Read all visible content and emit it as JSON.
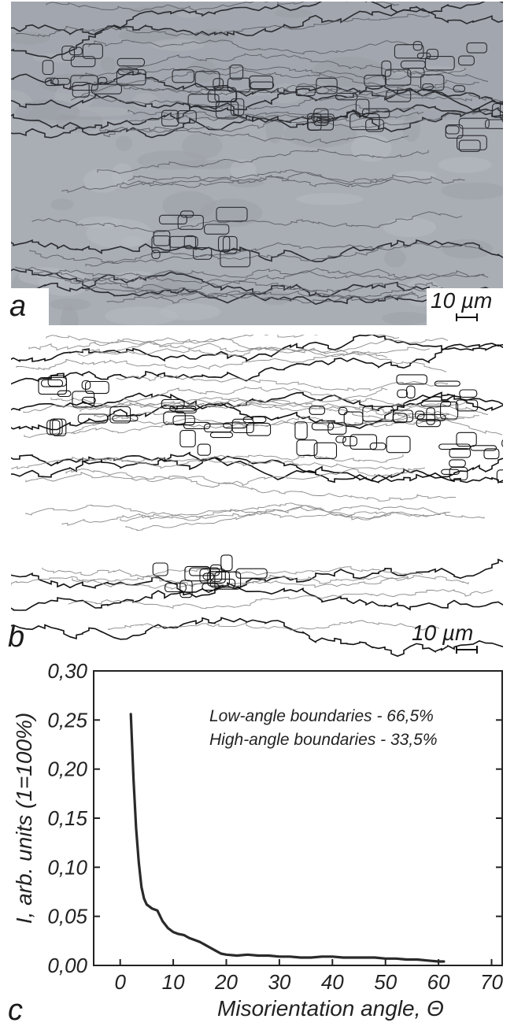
{
  "figure": {
    "panel_a": {
      "letter": "a",
      "scale_label": "10 µm"
    },
    "panel_b": {
      "letter": "b",
      "scale_label": "10 µm"
    },
    "panel_c": {
      "letter": "c"
    }
  },
  "chart_data": {
    "type": "line",
    "title": "",
    "xlabel": "Misorientation angle, Θ",
    "ylabel": "I, arb. units (1=100%)",
    "xlim": [
      -5,
      72
    ],
    "ylim": [
      0,
      0.3
    ],
    "x_ticks": [
      0,
      10,
      20,
      30,
      40,
      50,
      60,
      70
    ],
    "y_ticks": [
      0.0,
      0.05,
      0.1,
      0.15,
      0.2,
      0.25,
      0.3
    ],
    "x_tick_labels": [
      "0",
      "10",
      "20",
      "30",
      "40",
      "50",
      "60",
      "70"
    ],
    "y_tick_labels": [
      "0,00",
      "0,05",
      "0,10",
      "0,15",
      "0,20",
      "0,25",
      "0,30"
    ],
    "grid": false,
    "annotations": [
      "Low-angle boundaries - 66,5%",
      "High-angle boundaries - 33,5%"
    ],
    "series": [
      {
        "x": [
          2,
          2.5,
          3,
          3.5,
          4,
          4.5,
          5,
          5.5,
          6,
          7,
          8,
          9,
          10,
          11,
          12,
          13,
          14,
          15,
          16,
          17,
          18,
          19,
          20,
          22,
          24,
          26,
          28,
          30,
          32,
          34,
          36,
          38,
          40,
          42,
          44,
          46,
          48,
          50,
          52,
          54,
          56,
          58,
          60,
          61
        ],
        "y": [
          0.256,
          0.19,
          0.14,
          0.105,
          0.08,
          0.068,
          0.062,
          0.06,
          0.058,
          0.056,
          0.045,
          0.038,
          0.034,
          0.032,
          0.031,
          0.028,
          0.026,
          0.024,
          0.021,
          0.018,
          0.015,
          0.012,
          0.011,
          0.01,
          0.011,
          0.01,
          0.01,
          0.009,
          0.009,
          0.008,
          0.008,
          0.009,
          0.009,
          0.008,
          0.008,
          0.008,
          0.008,
          0.007,
          0.007,
          0.006,
          0.006,
          0.005,
          0.004,
          0.004
        ]
      }
    ]
  }
}
